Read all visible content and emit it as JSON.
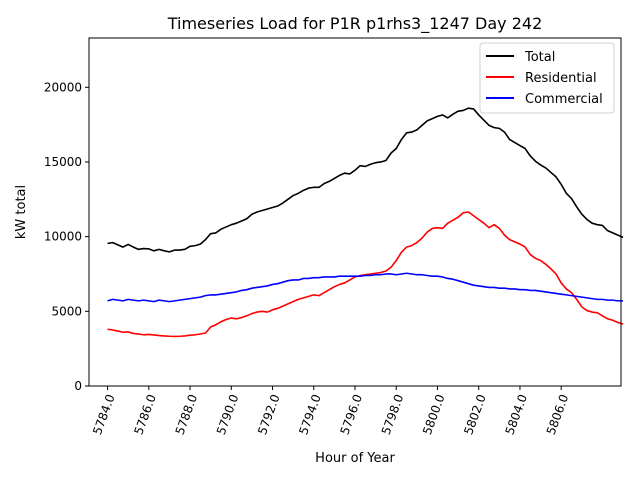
{
  "chart_data": {
    "type": "line",
    "title": "Timeseries Load for P1R p1rhs3_1247  Day 242",
    "xlabel": "Hour of Year",
    "ylabel": "kW total",
    "xlim": [
      5783.1,
      5808.9
    ],
    "ylim": [
      0,
      23300
    ],
    "x_ticks": [
      5784,
      5786,
      5788,
      5790,
      5792,
      5794,
      5796,
      5798,
      5800,
      5802,
      5804,
      5806
    ],
    "x_tick_labels": [
      "5784.0",
      "5786.0",
      "5788.0",
      "5790.0",
      "5792.0",
      "5794.0",
      "5796.0",
      "5798.0",
      "5800.0",
      "5802.0",
      "5804.0",
      "5806.0"
    ],
    "y_ticks": [
      0,
      5000,
      10000,
      15000,
      20000
    ],
    "y_tick_labels": [
      "0",
      "5000",
      "10000",
      "15000",
      "20000"
    ],
    "legend_position": "top-right",
    "x_start": 5784.0,
    "x_step": 0.25,
    "series": [
      {
        "name": "Total",
        "color": "#000000",
        "values": [
          9550,
          9600,
          9450,
          9300,
          9480,
          9300,
          9150,
          9200,
          9180,
          9050,
          9150,
          9050,
          8980,
          9100,
          9100,
          9150,
          9350,
          9400,
          9500,
          9800,
          10200,
          10250,
          10500,
          10650,
          10800,
          10900,
          11050,
          11200,
          11500,
          11650,
          11750,
          11850,
          11950,
          12050,
          12250,
          12500,
          12750,
          12900,
          13100,
          13250,
          13300,
          13300,
          13550,
          13700,
          13900,
          14100,
          14250,
          14200,
          14450,
          14750,
          14700,
          14850,
          14950,
          15000,
          15100,
          15600,
          15900,
          16500,
          16950,
          17000,
          17150,
          17450,
          17750,
          17900,
          18050,
          18150,
          17950,
          18200,
          18400,
          18450,
          18600,
          18550,
          18150,
          17800,
          17450,
          17300,
          17250,
          17000,
          16500,
          16300,
          16100,
          15900,
          15400,
          15050,
          14800,
          14600,
          14300,
          14000,
          13500,
          12900,
          12550,
          12000,
          11500,
          11150,
          10900,
          10800,
          10750,
          10400,
          10250,
          10100,
          9950
        ]
      },
      {
        "name": "Residential",
        "color": "#ff0000",
        "values": [
          3800,
          3750,
          3680,
          3600,
          3620,
          3520,
          3480,
          3430,
          3450,
          3420,
          3380,
          3350,
          3330,
          3320,
          3330,
          3350,
          3400,
          3430,
          3480,
          3550,
          3950,
          4100,
          4300,
          4450,
          4550,
          4500,
          4580,
          4700,
          4850,
          4950,
          5000,
          4950,
          5100,
          5200,
          5350,
          5500,
          5650,
          5800,
          5900,
          6000,
          6100,
          6050,
          6250,
          6450,
          6650,
          6800,
          6900,
          7100,
          7300,
          7400,
          7450,
          7500,
          7550,
          7600,
          7700,
          7950,
          8400,
          8950,
          9300,
          9400,
          9600,
          9900,
          10300,
          10550,
          10600,
          10550,
          10900,
          11100,
          11300,
          11600,
          11650,
          11400,
          11150,
          10900,
          10600,
          10800,
          10550,
          10100,
          9800,
          9650,
          9500,
          9300,
          8800,
          8550,
          8400,
          8150,
          7850,
          7500,
          6900,
          6500,
          6250,
          5800,
          5300,
          5050,
          4950,
          4900,
          4700,
          4500,
          4400,
          4250,
          4150
        ]
      },
      {
        "name": "Commercial",
        "color": "#0000ff",
        "values": [
          5700,
          5800,
          5750,
          5700,
          5800,
          5750,
          5700,
          5750,
          5700,
          5650,
          5750,
          5700,
          5650,
          5700,
          5750,
          5800,
          5850,
          5900,
          5950,
          6050,
          6100,
          6100,
          6150,
          6200,
          6250,
          6300,
          6400,
          6450,
          6550,
          6600,
          6650,
          6700,
          6800,
          6850,
          6950,
          7050,
          7100,
          7100,
          7200,
          7200,
          7250,
          7250,
          7300,
          7300,
          7300,
          7350,
          7350,
          7350,
          7350,
          7350,
          7400,
          7400,
          7450,
          7450,
          7500,
          7500,
          7450,
          7500,
          7550,
          7500,
          7450,
          7450,
          7400,
          7350,
          7350,
          7300,
          7200,
          7150,
          7050,
          6950,
          6850,
          6750,
          6700,
          6650,
          6600,
          6600,
          6550,
          6550,
          6500,
          6500,
          6450,
          6450,
          6400,
          6400,
          6350,
          6300,
          6250,
          6200,
          6150,
          6100,
          6050,
          6000,
          5950,
          5900,
          5850,
          5800,
          5800,
          5750,
          5750,
          5700,
          5700
        ]
      }
    ]
  }
}
